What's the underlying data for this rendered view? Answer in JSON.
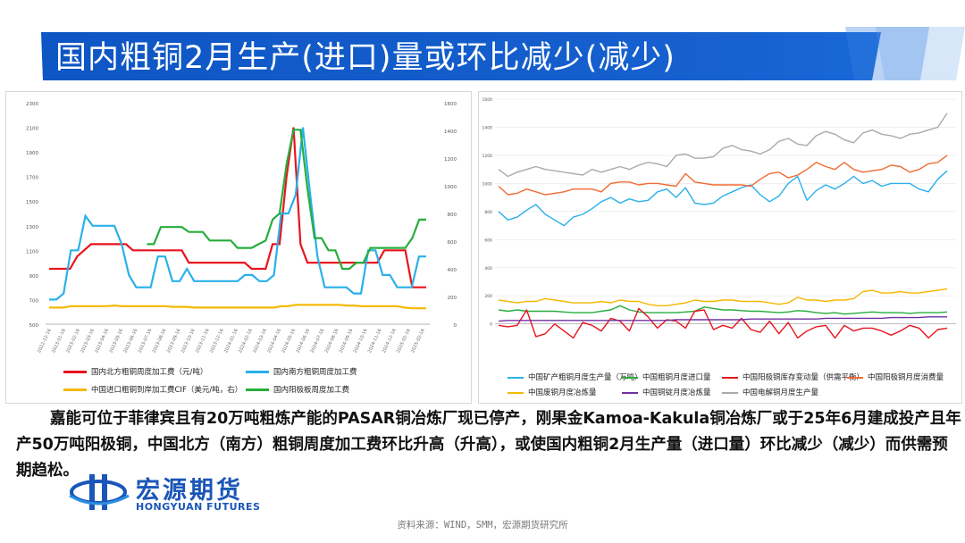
{
  "title": "国内粗铜2月生产(进口)量或环比减少(减少)",
  "description": "嘉能可位于菲律宾且有20万吨粗炼产能的PASAR铜冶炼厂现已停产，刚果金Kamoa-Kakula铜冶炼厂或于25年6月建成投产且年产50万吨阳极铜，中国北方（南方）粗铜周度加工费环比升高（升高），或使国内粗铜2月生产量（进口量）环比减少（减少）而供需预期趋松。",
  "logo": {
    "cn": "宏源期货",
    "en": "HONGYUAN FUTURES"
  },
  "source": "资料来源：WIND，SMM，宏源期货研究所",
  "colors": {
    "banner": "#1458c6",
    "red": "#e8141e",
    "blue": "#2ab0ea",
    "yellow": "#f5b800",
    "green": "#27ad3d",
    "orange": "#f26b32",
    "purple": "#7030a0",
    "gray": "#aaaaaa"
  },
  "chart_data": [
    {
      "type": "line",
      "xlabel": "",
      "ylabel": "",
      "left_axis": {
        "ticks": [
          500,
          700,
          900,
          1100,
          1300,
          1500,
          1700,
          1900,
          2100,
          2300
        ],
        "ylim": [
          500,
          2300
        ]
      },
      "right_axis": {
        "ticks": [
          0,
          200,
          400,
          600,
          800,
          1000,
          1200,
          1400,
          1600
        ],
        "ylim": [
          0,
          1600
        ]
      },
      "x_ticks": [
        "2022-12-16",
        "2023-01-16",
        "2023-02-16",
        "2023-03-16",
        "2023-04-16",
        "2023-05-16",
        "2023-06-16",
        "2023-07-16",
        "2023-08-16",
        "2023-09-16",
        "2023-10-16",
        "2023-11-16",
        "2023-12-16",
        "2024-01-16",
        "2024-02-16",
        "2024-03-16",
        "2024-04-16",
        "2024-05-16",
        "2024-06-16",
        "2024-07-16",
        "2024-08-16",
        "2024-09-16",
        "2024-10-16",
        "2024-11-16",
        "2024-12-16",
        "2025-01-16",
        "2025-02-16"
      ],
      "grid": false,
      "legend_position": "bottom",
      "series": [
        {
          "name": "国内北方粗铜周度加工费（元/吨）",
          "color_key": "red",
          "axis": "left",
          "values": [
            950,
            950,
            950,
            950,
            1050,
            1100,
            1150,
            1150,
            1150,
            1150,
            1150,
            1150,
            1100,
            1100,
            1100,
            1100,
            1100,
            1100,
            1100,
            1100,
            1000,
            1000,
            1000,
            1000,
            1000,
            1000,
            1000,
            1000,
            1000,
            950,
            950,
            950,
            1150,
            1150,
            1700,
            2100,
            1150,
            1000,
            1000,
            1000,
            1000,
            1000,
            1000,
            1000,
            1000,
            1000,
            1000,
            1000,
            1100,
            1100,
            1100,
            1100,
            800,
            800,
            800
          ]
        },
        {
          "name": "国内南方粗铜周度加工费",
          "color_key": "blue",
          "axis": "left",
          "values": [
            700,
            700,
            750,
            1100,
            1100,
            1380,
            1300,
            1300,
            1300,
            1300,
            1150,
            900,
            800,
            800,
            800,
            1050,
            1050,
            850,
            850,
            950,
            850,
            850,
            850,
            850,
            850,
            850,
            850,
            900,
            900,
            850,
            850,
            900,
            1400,
            1400,
            1550,
            2100,
            1550,
            1050,
            800,
            800,
            800,
            800,
            750,
            750,
            1100,
            1100,
            900,
            900,
            800,
            800,
            800,
            1050,
            1050
          ]
        },
        {
          "name": "中国进口粗铜到岸加工费CIF（美元/吨，右）",
          "color_key": "yellow",
          "axis": "right",
          "values": [
            120,
            120,
            120,
            130,
            130,
            130,
            130,
            130,
            130,
            135,
            130,
            130,
            130,
            130,
            130,
            130,
            130,
            125,
            125,
            125,
            120,
            120,
            120,
            120,
            120,
            120,
            120,
            120,
            120,
            120,
            120,
            120,
            130,
            130,
            140,
            140,
            140,
            140,
            140,
            140,
            140,
            135,
            135,
            130,
            130,
            130,
            130,
            130,
            130,
            120,
            115,
            115,
            115
          ]
        },
        {
          "name": "国内阳极板周度加工费",
          "color_key": "green",
          "axis": "left",
          "values": [
            null,
            null,
            null,
            null,
            null,
            null,
            null,
            null,
            null,
            null,
            null,
            null,
            null,
            null,
            1150,
            1150,
            1290,
            1290,
            1290,
            1290,
            1250,
            1250,
            1250,
            1180,
            1180,
            1180,
            1180,
            1120,
            1120,
            1120,
            1150,
            1180,
            1350,
            1400,
            1800,
            2080,
            2080,
            1600,
            1200,
            1200,
            1100,
            1100,
            950,
            950,
            1000,
            1000,
            1120,
            1120,
            1120,
            1120,
            1120,
            1120,
            1200,
            1350,
            1350
          ]
        }
      ]
    },
    {
      "type": "line",
      "xlabel": "",
      "ylabel": "",
      "ylim": [
        -40,
        1600
      ],
      "y_ticks": [
        0,
        200,
        400,
        600,
        800,
        1000,
        1200,
        1400,
        1600
      ],
      "grid": true,
      "legend_position": "bottom",
      "series": [
        {
          "name": "中国矿产粗铜月度生产量（万吨）",
          "color_key": "blue",
          "values": [
            800,
            740,
            760,
            810,
            850,
            780,
            740,
            700,
            760,
            780,
            820,
            870,
            900,
            860,
            890,
            870,
            880,
            940,
            960,
            900,
            970,
            860,
            850,
            860,
            910,
            940,
            970,
            990,
            920,
            870,
            910,
            1000,
            1050,
            880,
            950,
            990,
            960,
            1000,
            1050,
            1000,
            1020,
            980,
            1000,
            1000,
            1000,
            960,
            940,
            1030,
            1090
          ]
        },
        {
          "name": "中国粗铜月度进口量",
          "color_key": "green",
          "values": [
            100,
            90,
            100,
            90,
            90,
            90,
            90,
            85,
            80,
            80,
            80,
            90,
            100,
            130,
            100,
            85,
            80,
            80,
            80,
            80,
            85,
            90,
            120,
            110,
            100,
            100,
            95,
            90,
            90,
            85,
            80,
            85,
            95,
            90,
            80,
            75,
            80,
            70,
            75,
            80,
            85,
            80,
            80,
            80,
            75,
            80,
            80,
            80,
            85
          ]
        },
        {
          "name": "中国阳极铜库存变动量（供需平衡）",
          "color_key": "red",
          "values": [
            -10,
            -20,
            -10,
            100,
            -90,
            -70,
            0,
            -50,
            -100,
            10,
            -10,
            -50,
            40,
            20,
            -50,
            110,
            50,
            -30,
            30,
            20,
            -30,
            90,
            100,
            -40,
            -10,
            -30,
            40,
            -40,
            -60,
            20,
            -70,
            10,
            -100,
            -50,
            -20,
            -10,
            -100,
            -10,
            -50,
            -30,
            -30,
            -50,
            -80,
            -50,
            -10,
            -30,
            -100,
            -40,
            -30
          ]
        },
        {
          "name": "中国阳极铜月度消费量",
          "color_key": "orange",
          "values": [
            980,
            920,
            930,
            960,
            940,
            920,
            930,
            940,
            960,
            960,
            960,
            940,
            1000,
            1010,
            1010,
            990,
            1000,
            1000,
            990,
            980,
            1070,
            1010,
            1000,
            990,
            990,
            990,
            990,
            980,
            1030,
            1070,
            1080,
            1040,
            1060,
            1100,
            1150,
            1120,
            1100,
            1150,
            1100,
            1080,
            1090,
            1100,
            1130,
            1120,
            1080,
            1100,
            1140,
            1150,
            1200
          ]
        },
        {
          "name": "中国废铜月度冶炼量",
          "color_key": "yellow",
          "values": [
            170,
            160,
            150,
            160,
            160,
            180,
            170,
            160,
            150,
            150,
            150,
            160,
            150,
            170,
            160,
            160,
            140,
            130,
            130,
            140,
            150,
            170,
            160,
            160,
            170,
            170,
            160,
            160,
            160,
            150,
            140,
            150,
            190,
            170,
            170,
            160,
            170,
            170,
            180,
            230,
            240,
            220,
            220,
            230,
            220,
            220,
            230,
            240,
            250
          ]
        },
        {
          "name": "中国铜锭月度冶炼量",
          "color_key": "purple",
          "values": [
            20,
            25,
            25,
            25,
            25,
            25,
            25,
            25,
            25,
            25,
            25,
            25,
            25,
            25,
            25,
            25,
            25,
            25,
            25,
            30,
            30,
            30,
            30,
            30,
            30,
            30,
            30,
            35,
            35,
            35,
            35,
            35,
            35,
            35,
            35,
            40,
            40,
            40,
            40,
            40,
            40,
            40,
            45,
            45,
            45,
            45,
            50,
            50,
            50
          ]
        },
        {
          "name": "中国电解铜月度生产量",
          "color_key": "gray",
          "values": [
            1100,
            1050,
            1080,
            1100,
            1120,
            1100,
            1090,
            1080,
            1070,
            1060,
            1100,
            1080,
            1100,
            1120,
            1100,
            1130,
            1150,
            1140,
            1120,
            1200,
            1210,
            1180,
            1180,
            1190,
            1250,
            1270,
            1240,
            1230,
            1210,
            1240,
            1300,
            1320,
            1280,
            1270,
            1340,
            1370,
            1350,
            1310,
            1290,
            1360,
            1380,
            1350,
            1340,
            1320,
            1350,
            1360,
            1380,
            1400,
            1500
          ]
        }
      ]
    }
  ]
}
